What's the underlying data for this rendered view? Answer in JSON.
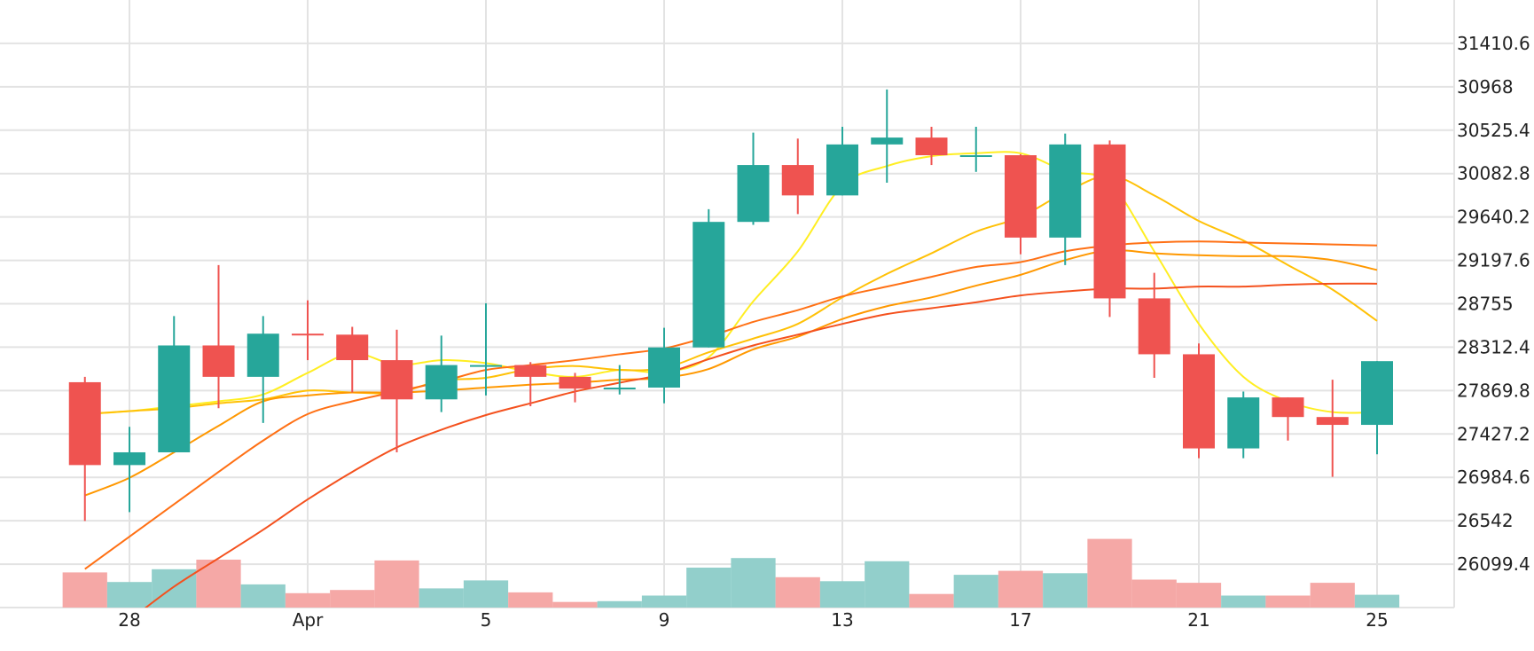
{
  "chart_data": {
    "type": "candlestick",
    "title": "",
    "xlabel": "",
    "ylabel": "",
    "x_ticks": [
      {
        "day": 28,
        "label": "28"
      },
      {
        "day": 32,
        "label": "Apr"
      },
      {
        "day": 36,
        "label": "5"
      },
      {
        "day": 40,
        "label": "9"
      },
      {
        "day": 44,
        "label": "13"
      },
      {
        "day": 48,
        "label": "17"
      },
      {
        "day": 52,
        "label": "21"
      },
      {
        "day": 56,
        "label": "25"
      }
    ],
    "y_ticks": [
      "26099.4",
      "26542",
      "26984.6",
      "27427.2",
      "27869.8",
      "28312.4",
      "28755",
      "29197.6",
      "29640.2",
      "30082.8",
      "30525.4",
      "30968",
      "31410.6"
    ],
    "ylim": [
      25657,
      31853
    ],
    "candles": [
      {
        "day": 27,
        "open": 27955,
        "high": 28010,
        "low": 26540,
        "close": 27110
      },
      {
        "day": 28,
        "open": 27110,
        "high": 27500,
        "low": 26630,
        "close": 27240
      },
      {
        "day": 29,
        "open": 27240,
        "high": 28630,
        "low": 27240,
        "close": 28330
      },
      {
        "day": 30,
        "open": 28330,
        "high": 29150,
        "low": 27690,
        "close": 28010
      },
      {
        "day": 31,
        "open": 28010,
        "high": 28630,
        "low": 27540,
        "close": 28450
      },
      {
        "day": 32,
        "open": 28450,
        "high": 28790,
        "low": 28180,
        "close": 28440
      },
      {
        "day": 33,
        "open": 28440,
        "high": 28520,
        "low": 27850,
        "close": 28180
      },
      {
        "day": 34,
        "open": 28180,
        "high": 28490,
        "low": 27240,
        "close": 27780
      },
      {
        "day": 35,
        "open": 27780,
        "high": 28430,
        "low": 27650,
        "close": 28130
      },
      {
        "day": 36,
        "open": 28130,
        "high": 28760,
        "low": 27820,
        "close": 28130
      },
      {
        "day": 37,
        "open": 28130,
        "high": 28160,
        "low": 27710,
        "close": 28010
      },
      {
        "day": 38,
        "open": 28010,
        "high": 28050,
        "low": 27750,
        "close": 27890
      },
      {
        "day": 39,
        "open": 27890,
        "high": 28130,
        "low": 27830,
        "close": 27900
      },
      {
        "day": 40,
        "open": 27900,
        "high": 28510,
        "low": 27740,
        "close": 28310
      },
      {
        "day": 41,
        "open": 28310,
        "high": 29720,
        "low": 28310,
        "close": 29590
      },
      {
        "day": 42,
        "open": 29590,
        "high": 30500,
        "low": 29560,
        "close": 30170
      },
      {
        "day": 43,
        "open": 30170,
        "high": 30440,
        "low": 29670,
        "close": 29860
      },
      {
        "day": 44,
        "open": 29860,
        "high": 30560,
        "low": 29860,
        "close": 30380
      },
      {
        "day": 45,
        "open": 30380,
        "high": 30940,
        "low": 29990,
        "close": 30450
      },
      {
        "day": 46,
        "open": 30450,
        "high": 30560,
        "low": 30170,
        "close": 30270
      },
      {
        "day": 47,
        "open": 30270,
        "high": 30560,
        "low": 30100,
        "close": 30270
      },
      {
        "day": 48,
        "open": 30270,
        "high": 30280,
        "low": 29260,
        "close": 29430
      },
      {
        "day": 49,
        "open": 29430,
        "high": 30490,
        "low": 29150,
        "close": 30380
      },
      {
        "day": 50,
        "open": 30380,
        "high": 30420,
        "low": 28620,
        "close": 28810
      },
      {
        "day": 51,
        "open": 28810,
        "high": 29070,
        "low": 28000,
        "close": 28240
      },
      {
        "day": 52,
        "open": 28240,
        "high": 28350,
        "low": 27180,
        "close": 27280
      },
      {
        "day": 53,
        "open": 27280,
        "high": 27860,
        "low": 27180,
        "close": 27800
      },
      {
        "day": 54,
        "open": 27800,
        "high": 27800,
        "low": 27360,
        "close": 27600
      },
      {
        "day": 55,
        "open": 27600,
        "high": 27980,
        "low": 26990,
        "close": 27520
      },
      {
        "day": 56,
        "open": 27520,
        "high": 28170,
        "low": 27220,
        "close": 28170
      }
    ],
    "volume_relative": [
      0.44,
      0.32,
      0.48,
      0.6,
      0.29,
      0.18,
      0.22,
      0.59,
      0.24,
      0.34,
      0.19,
      0.07,
      0.08,
      0.15,
      0.5,
      0.62,
      0.38,
      0.33,
      0.58,
      0.17,
      0.41,
      0.46,
      0.43,
      0.86,
      0.35,
      0.31,
      0.15,
      0.15,
      0.31,
      0.16
    ],
    "moving_averages": [
      {
        "color": "#ffee22",
        "values": [
          27630,
          27660,
          27710,
          27760,
          27830,
          28050,
          28250,
          28130,
          28180,
          28150,
          28060,
          28010,
          28080,
          28060,
          28210,
          28780,
          29290,
          29960,
          30160,
          30260,
          30290,
          30290,
          30110,
          29990,
          29290,
          28550,
          28010,
          27760,
          27650,
          27650
        ]
      },
      {
        "color": "#ffc107",
        "values": [
          27630,
          27660,
          27690,
          27740,
          27780,
          27870,
          27850,
          27850,
          27970,
          28000,
          28090,
          28120,
          28080,
          28100,
          28260,
          28400,
          28550,
          28820,
          29060,
          29270,
          29490,
          29640,
          29890,
          30060,
          29860,
          29600,
          29400,
          29150,
          28900,
          28580
        ]
      },
      {
        "color": "#ff9800",
        "values": [
          26800,
          26980,
          27240,
          27510,
          27760,
          27820,
          27850,
          27850,
          27870,
          27900,
          27930,
          27950,
          27980,
          28000,
          28090,
          28290,
          28420,
          28600,
          28730,
          28820,
          28940,
          29050,
          29200,
          29300,
          29270,
          29250,
          29240,
          29240,
          29200,
          29100
        ]
      },
      {
        "color": "#ff7014",
        "values": [
          26050,
          26380,
          26710,
          27040,
          27360,
          27630,
          27760,
          27860,
          27960,
          28080,
          28130,
          28180,
          28240,
          28300,
          28420,
          28570,
          28690,
          28830,
          28930,
          29030,
          29130,
          29180,
          29290,
          29350,
          29380,
          29390,
          29380,
          29370,
          29360,
          29350
        ]
      },
      {
        "color": "#f4511e",
        "values": [
          25200,
          25530,
          25870,
          26160,
          26450,
          26760,
          27040,
          27290,
          27470,
          27620,
          27740,
          27860,
          27950,
          28040,
          28190,
          28330,
          28440,
          28550,
          28650,
          28710,
          28770,
          28840,
          28880,
          28910,
          28910,
          28930,
          28930,
          28950,
          28960,
          28960
        ]
      }
    ],
    "colors": {
      "up": "#26a69a",
      "down": "#ef5350",
      "up_volume": "#92cfcb",
      "down_volume": "#f5a8a6",
      "grid": "#e3e3e3"
    }
  }
}
